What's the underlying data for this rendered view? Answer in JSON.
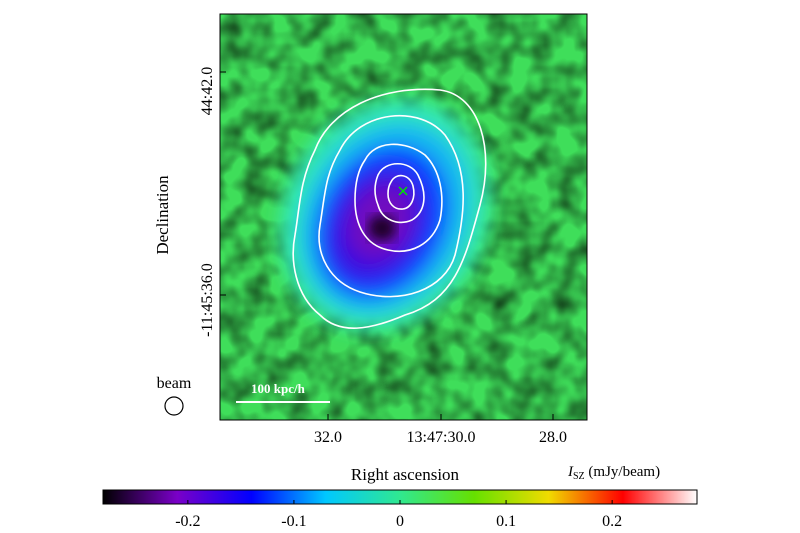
{
  "chart_data": {
    "type": "heatmap",
    "title": "",
    "xlabel": "Right ascension",
    "ylabel": "Declination",
    "x_ticks": [
      "32.0",
      "13:47:30.0",
      "28.0"
    ],
    "y_ticks": [
      "44:42.0",
      "-11:45:36.0"
    ],
    "colorbar": {
      "label_symbol": "I",
      "label_subscript": "SZ",
      "label_unit": "(mJy/beam)",
      "range": [
        -0.28,
        0.28
      ],
      "ticks": [
        -0.2,
        -0.1,
        0,
        0.1,
        0.2
      ],
      "tick_labels": [
        "-0.2",
        "-0.1",
        "0",
        "0.1",
        "0.2"
      ],
      "colormap": [
        "#000000",
        "#7a00c8",
        "#0000ff",
        "#00c8ff",
        "#30e890",
        "#66e000",
        "#f0dc00",
        "#ff0000",
        "#ffffff"
      ]
    },
    "contours": {
      "count": 5,
      "color": "#ffffff"
    },
    "marker": {
      "symbol": "x",
      "color": "#00e000"
    },
    "annotations": {
      "scale_bar": "100 kpc/h",
      "beam": "beam"
    },
    "grid": false
  }
}
